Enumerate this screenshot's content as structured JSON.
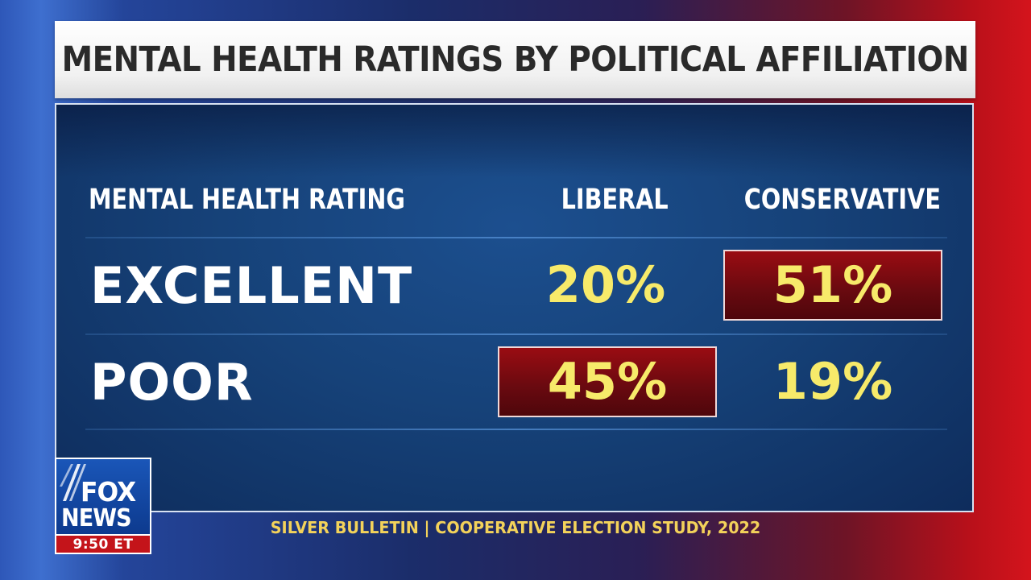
{
  "title": "MENTAL HEALTH RATINGS BY POLITICAL AFFILIATION",
  "chart_data": {
    "type": "table",
    "title": "MENTAL HEALTH RATINGS BY POLITICAL AFFILIATION",
    "columns": [
      "MENTAL HEALTH RATING",
      "LIBERAL",
      "CONSERVATIVE"
    ],
    "rows": [
      {
        "label": "EXCELLENT",
        "values": [
          20,
          51
        ],
        "display": [
          "20%",
          "51%"
        ],
        "highlight": [
          false,
          true
        ]
      },
      {
        "label": "POOR",
        "values": [
          45,
          19
        ],
        "display": [
          "45%",
          "19%"
        ],
        "highlight": [
          true,
          false
        ]
      }
    ],
    "unit": "%",
    "highlight_color": "#7a0a10",
    "value_color": "#f7ea6a"
  },
  "source": "SILVER BULLETIN | COOPERATIVE ELECTION STUDY, 2022",
  "logo": {
    "line1": "FOX",
    "line2": "NEWS",
    "time": "9:50 ET"
  }
}
